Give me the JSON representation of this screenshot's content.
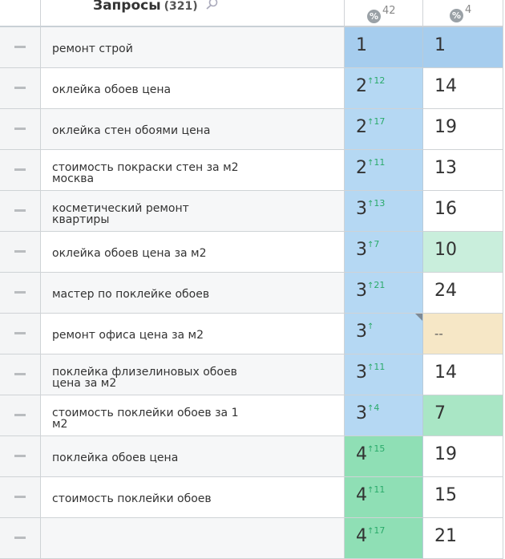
{
  "header": {
    "title": "Запросы",
    "count": "(321)",
    "badge_symbol": "%",
    "col3_badge": "42",
    "col4_badge": "4"
  },
  "rows": [
    {
      "query": "ремонт строй",
      "pos": "1",
      "change": null,
      "pos_color": "#a6cdee",
      "cur": "1",
      "cur_color": "#a6cdee"
    },
    {
      "query": "оклейка обоев цена",
      "pos": "2",
      "change": "12",
      "pos_color": "#b5d8f3",
      "cur": "14",
      "cur_color": "#ffffff"
    },
    {
      "query": "оклейка стен обоями цена",
      "pos": "2",
      "change": "17",
      "pos_color": "#b5d8f3",
      "cur": "19",
      "cur_color": "#ffffff"
    },
    {
      "query": "стоимость покраски стен за м2 москва",
      "pos": "2",
      "change": "11",
      "pos_color": "#b5d8f3",
      "cur": "13",
      "cur_color": "#ffffff"
    },
    {
      "query": "косметический ремонт квартиры",
      "pos": "3",
      "change": "13",
      "pos_color": "#b5d8f3",
      "cur": "16",
      "cur_color": "#ffffff"
    },
    {
      "query": "оклейка обоев цена за м2",
      "pos": "3",
      "change": "7",
      "pos_color": "#b5d8f3",
      "cur": "10",
      "cur_color": "#c9eedc"
    },
    {
      "query": "мастер по поклейке обоев",
      "pos": "3",
      "change": "21",
      "pos_color": "#b5d8f3",
      "cur": "24",
      "cur_color": "#ffffff"
    },
    {
      "query": "ремонт офиса цена за м2",
      "pos": "3",
      "change": null,
      "pos_color": "#b5d8f3",
      "cur": "--",
      "cur_color": "#f6e7c6",
      "marker": true
    },
    {
      "query": "поклейка флизелиновых обоев цена за м2",
      "pos": "3",
      "change": "11",
      "pos_color": "#b5d8f3",
      "cur": "14",
      "cur_color": "#ffffff"
    },
    {
      "query": "стоимость поклейки обоев за 1 м2",
      "pos": "3",
      "change": "4",
      "pos_color": "#b5d8f3",
      "cur": "7",
      "cur_color": "#a9e6c5"
    },
    {
      "query": "поклейка обоев цена",
      "pos": "4",
      "change": "15",
      "pos_color": "#8fdfb5",
      "cur": "19",
      "cur_color": "#ffffff"
    },
    {
      "query": "стоимость поклейки обоев",
      "pos": "4",
      "change": "11",
      "pos_color": "#8fdfb5",
      "cur": "15",
      "cur_color": "#ffffff"
    },
    {
      "query": null,
      "pos": "4",
      "change": "17",
      "pos_color": "#8fdfb5",
      "cur": "21",
      "cur_color": "#ffffff"
    }
  ]
}
